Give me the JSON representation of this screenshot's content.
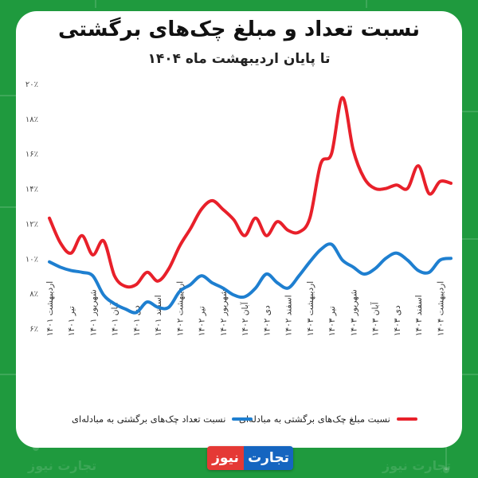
{
  "chart_data": {
    "type": "line",
    "title": "نسبت تعداد و مبلغ چک‌های برگشتی",
    "subtitle": "تا پایان اردیبهشت ماه ۱۴۰۴",
    "ylim": [
      6,
      20
    ],
    "yticks": [
      6,
      8,
      10,
      12,
      14,
      16,
      18,
      20
    ],
    "ytick_labels": [
      "۶٪",
      "۸٪",
      "۱۰٪",
      "۱۲٪",
      "۱۴٪",
      "۱۶٪",
      "۱۸٪",
      "۲۰٪"
    ],
    "x_count": 38,
    "x_tick_labels": [
      {
        "i": 0,
        "label": "اردیبهشت ۱۴۰۱"
      },
      {
        "i": 2,
        "label": "تیر ۱۴۰۱"
      },
      {
        "i": 4,
        "label": "شهریور ۱۴۰۱"
      },
      {
        "i": 6,
        "label": "آبان ۱۴۰۱"
      },
      {
        "i": 8,
        "label": "دی ۱۴۰۱"
      },
      {
        "i": 10,
        "label": "اسفند ۱۴۰۱"
      },
      {
        "i": 12,
        "label": "اردیبهشت ۱۴۰۲"
      },
      {
        "i": 14,
        "label": "تیر ۱۴۰۲"
      },
      {
        "i": 16,
        "label": "شهریور ۱۴۰۲"
      },
      {
        "i": 18,
        "label": "آبان ۱۴۰۲"
      },
      {
        "i": 20,
        "label": "دی ۱۴۰۲"
      },
      {
        "i": 22,
        "label": "اسفند ۱۴۰۲"
      },
      {
        "i": 24,
        "label": "اردیبهشت ۱۴۰۳"
      },
      {
        "i": 26,
        "label": "تیر ۱۴۰۳"
      },
      {
        "i": 28,
        "label": "شهریور ۱۴۰۳"
      },
      {
        "i": 30,
        "label": "آبان ۱۴۰۳"
      },
      {
        "i": 32,
        "label": "دی ۱۴۰۳"
      },
      {
        "i": 34,
        "label": "اسفند ۱۴۰۳"
      },
      {
        "i": 36,
        "label": "اردیبهشت ۱۴۰۴"
      }
    ],
    "series": [
      {
        "name": "نسبت مبلغ چک‌های برگشتی به مبادله‌ای",
        "color": "#e8202a",
        "values": [
          12.3,
          10.9,
          10.3,
          11.3,
          10.2,
          11.0,
          9.0,
          8.4,
          8.5,
          9.2,
          8.7,
          9.4,
          10.7,
          11.7,
          12.8,
          13.3,
          12.8,
          12.2,
          11.3,
          12.3,
          11.3,
          12.1,
          11.6,
          11.5,
          12.3,
          15.4,
          16.0,
          19.2,
          16.2,
          14.6,
          14.0,
          14.0,
          14.2,
          14.0,
          15.3,
          13.7,
          14.4,
          14.3
        ]
      },
      {
        "name": "نسبت تعداد چک‌های برگشتی به مبادله‌ای",
        "color": "#1e7fd0",
        "values": [
          9.8,
          9.5,
          9.3,
          9.2,
          9.0,
          7.9,
          7.4,
          7.1,
          6.9,
          7.5,
          7.2,
          7.2,
          8.1,
          8.5,
          9.0,
          8.6,
          8.3,
          7.9,
          7.8,
          8.3,
          9.1,
          8.6,
          8.3,
          9.0,
          9.8,
          10.5,
          10.8,
          9.9,
          9.5,
          9.1,
          9.4,
          10.0,
          10.3,
          9.9,
          9.3,
          9.2,
          9.9,
          10.0
        ]
      }
    ],
    "grid": false,
    "legend": "bottom"
  },
  "brand": {
    "part1": "تجارت",
    "part2": "نیوز"
  },
  "watermark": "تجارت نیوز"
}
